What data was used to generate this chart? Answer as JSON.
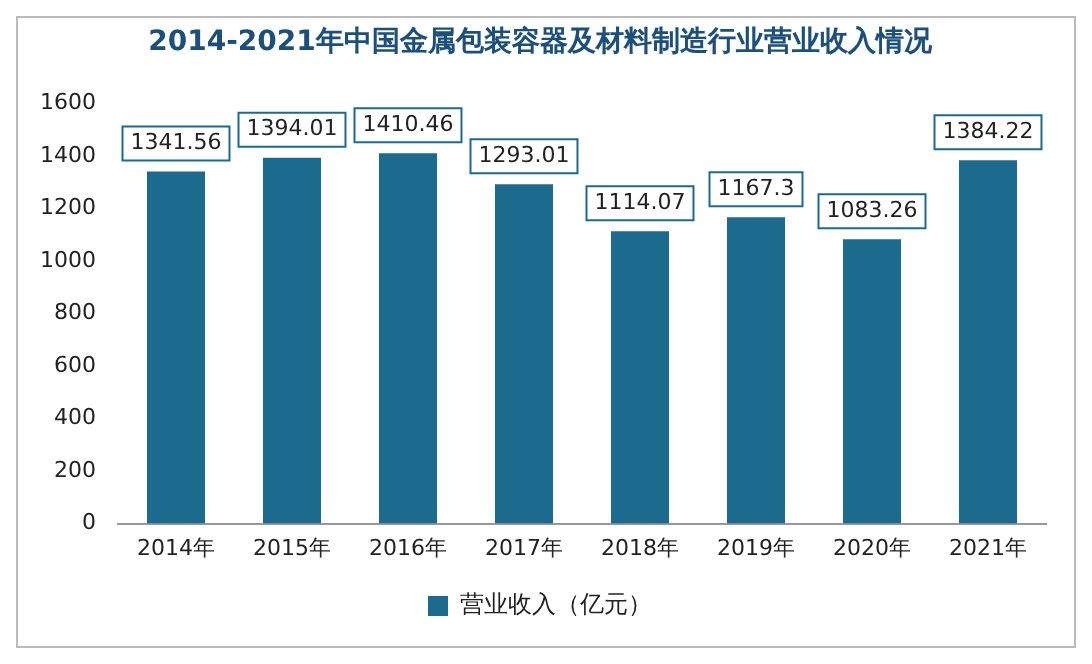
{
  "chart_data": {
    "type": "bar",
    "title": "2014-2021年中国金属包装容器及材料制造行业营业收入情况",
    "categories": [
      "2014年",
      "2015年",
      "2016年",
      "2017年",
      "2018年",
      "2019年",
      "2020年",
      "2021年"
    ],
    "series": [
      {
        "name": "营业收入（亿元）",
        "color": "#1c6a8d",
        "values": [
          1341.56,
          1394.01,
          1410.46,
          1293.01,
          1114.07,
          1167.3,
          1083.26,
          1384.22
        ]
      }
    ],
    "ylim": [
      0,
      1600
    ],
    "yticks": [
      0,
      200,
      400,
      600,
      800,
      1000,
      1200,
      1400,
      1600
    ],
    "grid": false,
    "legend": "bottom",
    "data_labels": true
  }
}
